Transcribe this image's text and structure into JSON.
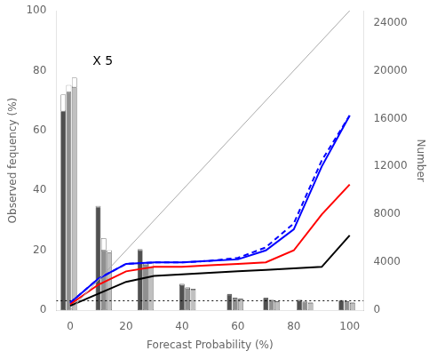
{
  "chart_data": {
    "type": "bar",
    "x_label": "Forecast Probability (%)",
    "y_label": "Observed fequency (%)",
    "y2_label": "Number",
    "xlim": [
      -5,
      105
    ],
    "ylim": [
      0,
      100
    ],
    "y2lim": [
      0,
      25000
    ],
    "xticks": [
      0,
      20,
      40,
      60,
      80,
      100
    ],
    "yticks": [
      0,
      20,
      40,
      60,
      80,
      100
    ],
    "y2ticks": [
      0,
      4000,
      8000,
      12000,
      16000,
      20000,
      24000
    ],
    "grid": false,
    "stacked": true,
    "series": [
      {
        "type": "bar",
        "axis": "y2",
        "color": "#505050",
        "x": [
          -2.5,
          10,
          25,
          40,
          57,
          70,
          82,
          97
        ],
        "values": [
          16600,
          8600,
          5000,
          2100,
          1300,
          1000,
          800,
          800
        ]
      },
      {
        "type": "bar",
        "axis": "y2",
        "color": "white",
        "x": [
          -2.5,
          10,
          25,
          40,
          57,
          70,
          82,
          97
        ],
        "values": [
          1400,
          100,
          100,
          100,
          60,
          60,
          60,
          40
        ]
      },
      {
        "type": "bar",
        "axis": "y2",
        "color": "#909090",
        "x": [
          -0.5,
          12,
          27,
          42,
          59,
          72,
          84,
          99
        ],
        "values": [
          18200,
          5000,
          3800,
          1800,
          1000,
          800,
          700,
          700
        ]
      },
      {
        "type": "bar",
        "axis": "y2",
        "color": "white",
        "x": [
          -0.5,
          12,
          27,
          42,
          59,
          72,
          84,
          99
        ],
        "values": [
          600,
          1000,
          200,
          100,
          60,
          60,
          40,
          60
        ]
      },
      {
        "type": "bar",
        "axis": "y2",
        "color": "#c0c0c0",
        "x": [
          1.5,
          14,
          29,
          44,
          61,
          74,
          86,
          101
        ],
        "values": [
          18600,
          4800,
          3600,
          1700,
          900,
          700,
          600,
          600
        ]
      },
      {
        "type": "bar",
        "axis": "y2",
        "color": "white",
        "x": [
          1.5,
          14,
          29,
          44,
          61,
          74,
          86,
          101
        ],
        "values": [
          800,
          200,
          300,
          100,
          60,
          60,
          40,
          40
        ]
      },
      {
        "type": "line",
        "color": "#aaaaaa",
        "line_style": "solid",
        "x": [
          0,
          100
        ],
        "values": [
          0,
          100
        ]
      },
      {
        "type": "line",
        "color": "black",
        "line_style": "solid",
        "x": [
          0,
          10,
          20,
          30,
          40,
          50,
          60,
          70,
          80,
          90,
          100
        ],
        "values": [
          1.5,
          5.5,
          9.5,
          11.5,
          12.0,
          12.5,
          13.0,
          13.5,
          14.0,
          14.5,
          25.0
        ]
      },
      {
        "type": "line",
        "color": "red",
        "line_style": "solid",
        "x": [
          0,
          10,
          20,
          30,
          40,
          50,
          60,
          70,
          80,
          90,
          100
        ],
        "values": [
          2.0,
          8.5,
          13.0,
          14.5,
          14.5,
          15.0,
          15.5,
          16.0,
          20.0,
          32.0,
          42.0
        ]
      },
      {
        "type": "line",
        "color": "blue",
        "line_style": "solid",
        "x": [
          0,
          10,
          20,
          30,
          40,
          50,
          60,
          70,
          80,
          90,
          100
        ],
        "values": [
          2.5,
          10.5,
          15.5,
          16.0,
          16.0,
          16.5,
          17.0,
          20.0,
          27.0,
          48.0,
          65.0
        ]
      },
      {
        "type": "line",
        "color": "blue",
        "line_style": "dashed",
        "x": [
          0,
          10,
          20,
          30,
          40,
          50,
          60,
          70,
          80,
          90,
          100
        ],
        "values": [
          2.5,
          10.5,
          15.5,
          16.0,
          16.0,
          16.5,
          17.5,
          21.0,
          29.0,
          50.0,
          65.0
        ]
      }
    ],
    "reference_lines": [
      {
        "y": 3.2,
        "color": "black",
        "line_style": "dotted"
      }
    ],
    "annotations": [
      {
        "text": "X 5",
        "x": 8,
        "y": 82
      }
    ]
  }
}
